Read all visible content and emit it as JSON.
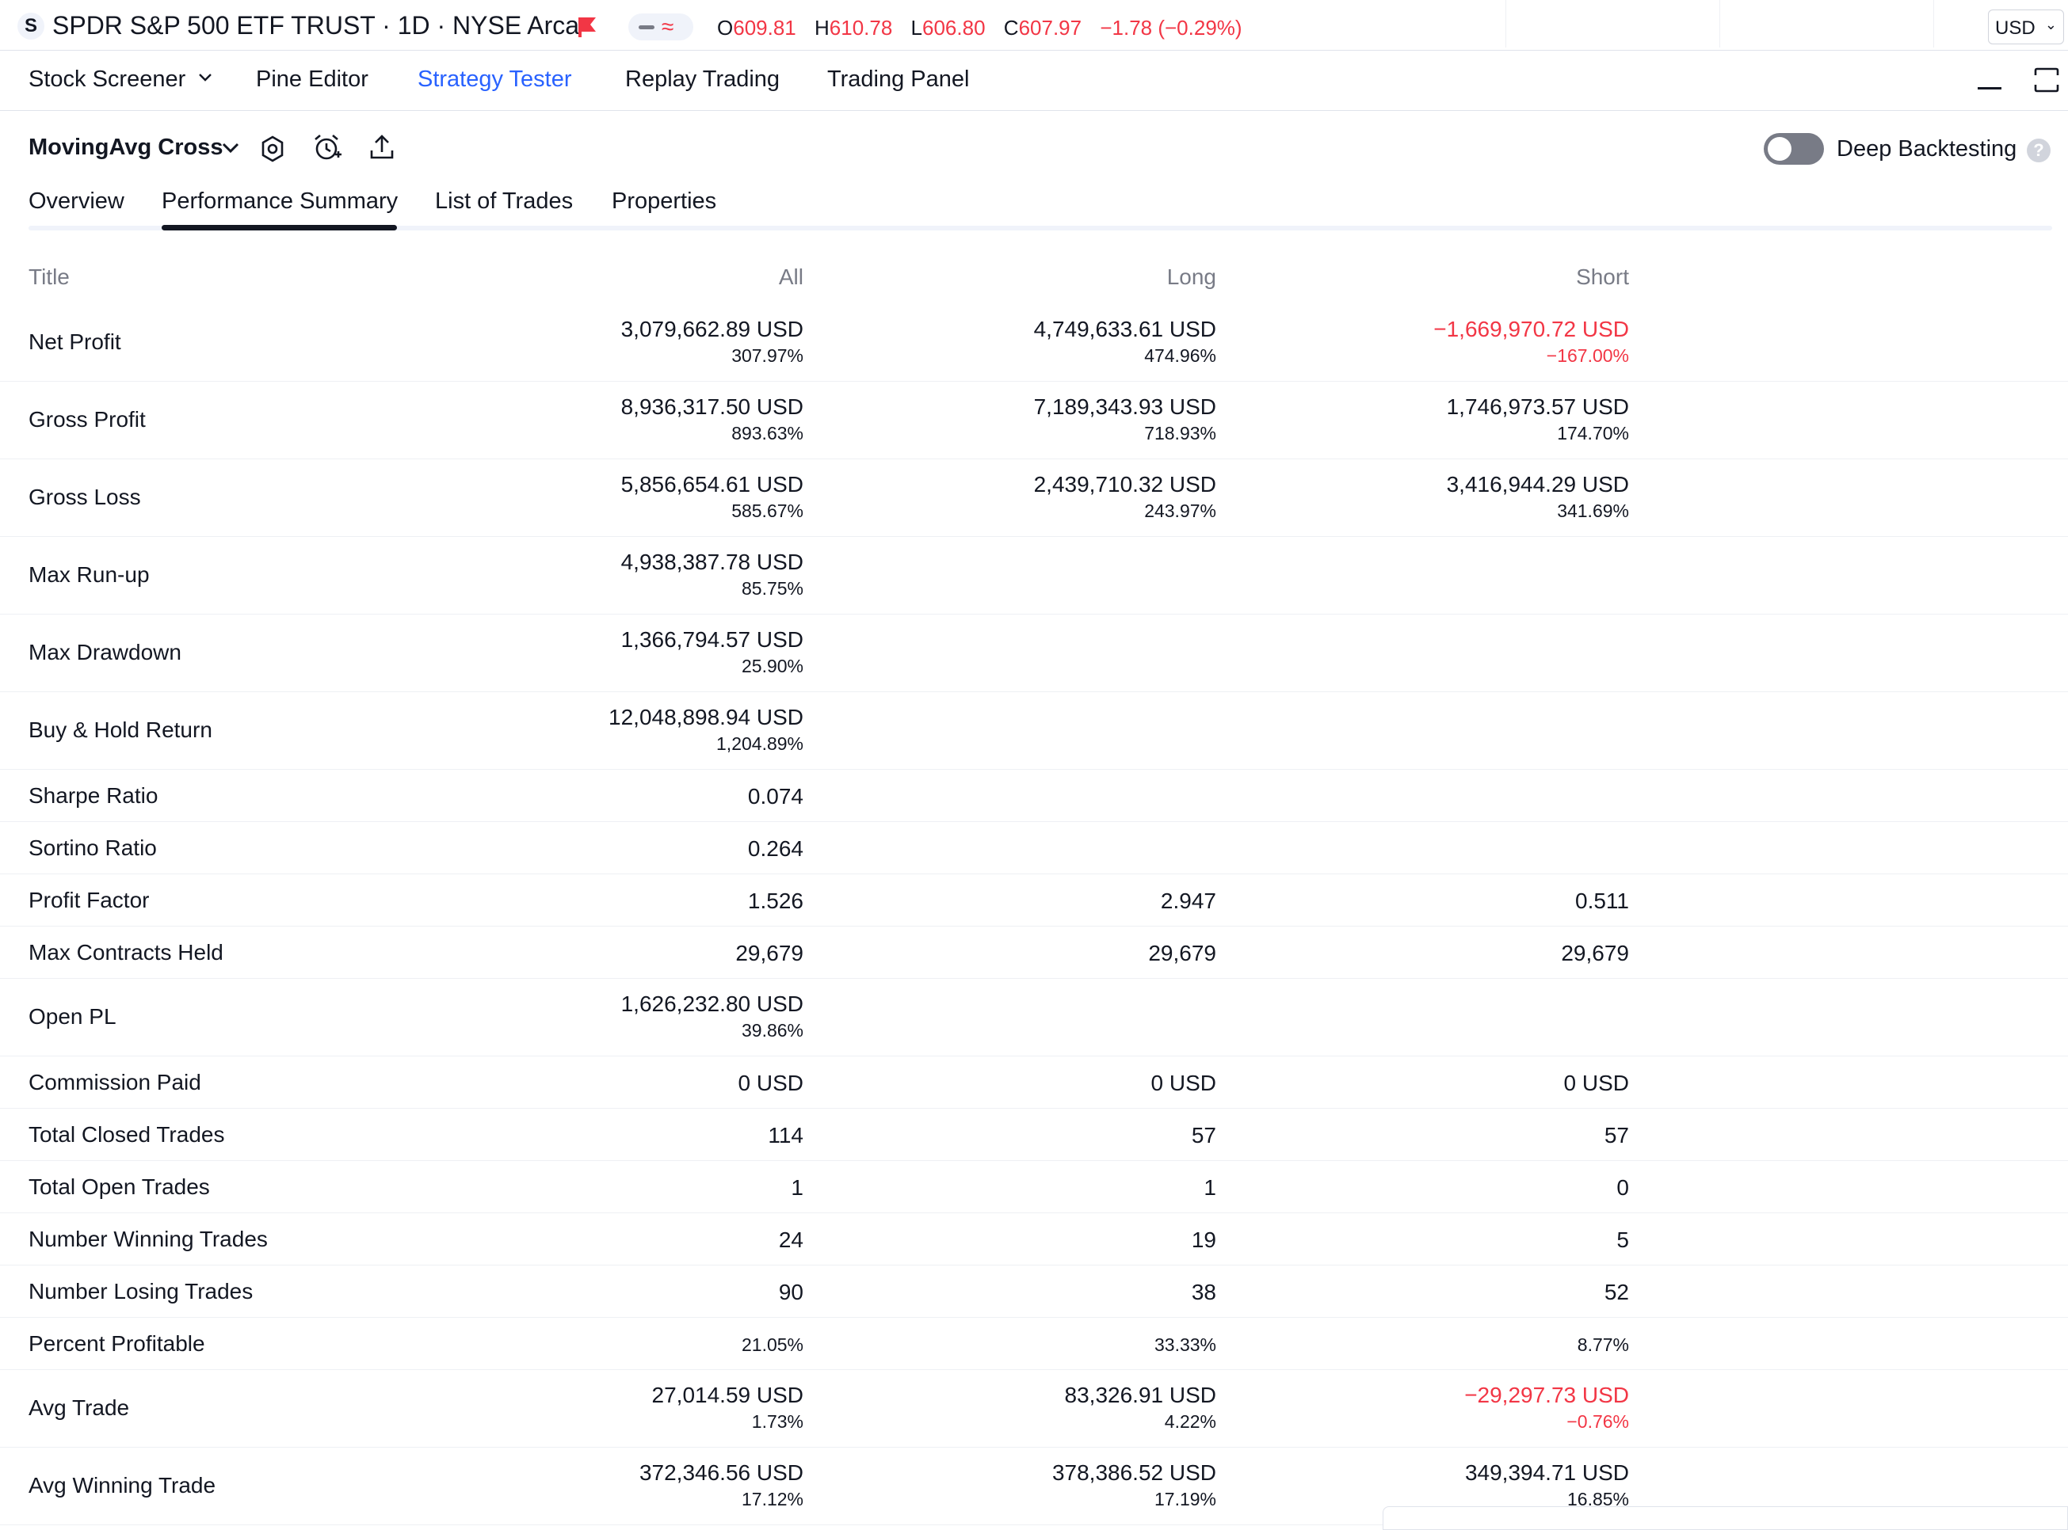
{
  "symbol": {
    "badge": "S",
    "title": "SPDR S&P 500 ETF TRUST · 1D · NYSE Arca",
    "ohlc": {
      "o_label": "O",
      "o": "609.81",
      "h_label": "H",
      "h": "610.78",
      "l_label": "L",
      "l": "606.80",
      "c_label": "C",
      "c": "607.97",
      "change": "−1.78 (−0.29%)"
    },
    "currency": "USD"
  },
  "panel_tabs": [
    "Stock Screener",
    "Pine Editor",
    "Strategy Tester",
    "Replay Trading",
    "Trading Panel"
  ],
  "strategy": {
    "name": "MovingAvg Cross",
    "deep_backtesting_label": "Deep Backtesting",
    "help": "?"
  },
  "sub_tabs": [
    "Overview",
    "Performance Summary",
    "List of Trades",
    "Properties"
  ],
  "table": {
    "headers": {
      "title": "Title",
      "all": "All",
      "long": "Long",
      "short": "Short"
    },
    "rows": [
      {
        "title": "Net Profit",
        "all": {
          "main": "3,079,662.89 USD",
          "sub": "307.97%"
        },
        "long": {
          "main": "4,749,633.61 USD",
          "sub": "474.96%"
        },
        "short": {
          "main": "−1,669,970.72 USD",
          "sub": "−167.00%"
        }
      },
      {
        "title": "Gross Profit",
        "all": {
          "main": "8,936,317.50 USD",
          "sub": "893.63%"
        },
        "long": {
          "main": "7,189,343.93 USD",
          "sub": "718.93%"
        },
        "short": {
          "main": "1,746,973.57 USD",
          "sub": "174.70%"
        }
      },
      {
        "title": "Gross Loss",
        "all": {
          "main": "5,856,654.61 USD",
          "sub": "585.67%"
        },
        "long": {
          "main": "2,439,710.32 USD",
          "sub": "243.97%"
        },
        "short": {
          "main": "3,416,944.29 USD",
          "sub": "341.69%"
        }
      },
      {
        "title": "Max Run-up",
        "all": {
          "main": "4,938,387.78 USD",
          "sub": "85.75%"
        }
      },
      {
        "title": "Max Drawdown",
        "all": {
          "main": "1,366,794.57 USD",
          "sub": "25.90%"
        }
      },
      {
        "title": "Buy & Hold Return",
        "all": {
          "main": "12,048,898.94 USD",
          "sub": "1,204.89%"
        }
      },
      {
        "title": "Sharpe Ratio",
        "all": "0.074"
      },
      {
        "title": "Sortino Ratio",
        "all": "0.264"
      },
      {
        "title": "Profit Factor",
        "all": "1.526",
        "long": "2.947",
        "short": "0.511"
      },
      {
        "title": "Max Contracts Held",
        "all": "29,679",
        "long": "29,679",
        "short": "29,679"
      },
      {
        "title": "Open PL",
        "all": {
          "main": "1,626,232.80 USD",
          "sub": "39.86%"
        }
      },
      {
        "title": "Commission Paid",
        "all": "0 USD",
        "long": "0 USD",
        "short": "0 USD"
      },
      {
        "title": "Total Closed Trades",
        "all": "114",
        "long": "57",
        "short": "57"
      },
      {
        "title": "Total Open Trades",
        "all": "1",
        "long": "1",
        "short": "0"
      },
      {
        "title": "Number Winning Trades",
        "all": "24",
        "long": "19",
        "short": "5"
      },
      {
        "title": "Number Losing Trades",
        "all": "90",
        "long": "38",
        "short": "52"
      },
      {
        "title": "Percent Profitable",
        "all": "21.05%",
        "long": "33.33%",
        "short": "8.77%"
      },
      {
        "title": "Avg Trade",
        "all": {
          "main": "27,014.59 USD",
          "sub": "1.73%"
        },
        "long": {
          "main": "83,326.91 USD",
          "sub": "4.22%"
        },
        "short": {
          "main": "−29,297.73 USD",
          "sub": "−0.76%"
        }
      },
      {
        "title": "Avg Winning Trade",
        "all": {
          "main": "372,346.56 USD",
          "sub": "17.12%"
        },
        "long": {
          "main": "378,386.52 USD",
          "sub": "17.19%"
        },
        "short": {
          "main": "349,394.71 USD",
          "sub": "16.85%"
        }
      }
    ]
  },
  "colors": {
    "accent": "#2962ff",
    "negative": "#f23645",
    "muted": "#787b86",
    "text": "#131722"
  },
  "icons": [
    "flag-icon",
    "minus-icon",
    "wave-icon",
    "chevron-down-icon",
    "minimize-icon",
    "maximize-icon",
    "settings-icon",
    "alert-add-icon",
    "export-icon",
    "help-icon"
  ]
}
